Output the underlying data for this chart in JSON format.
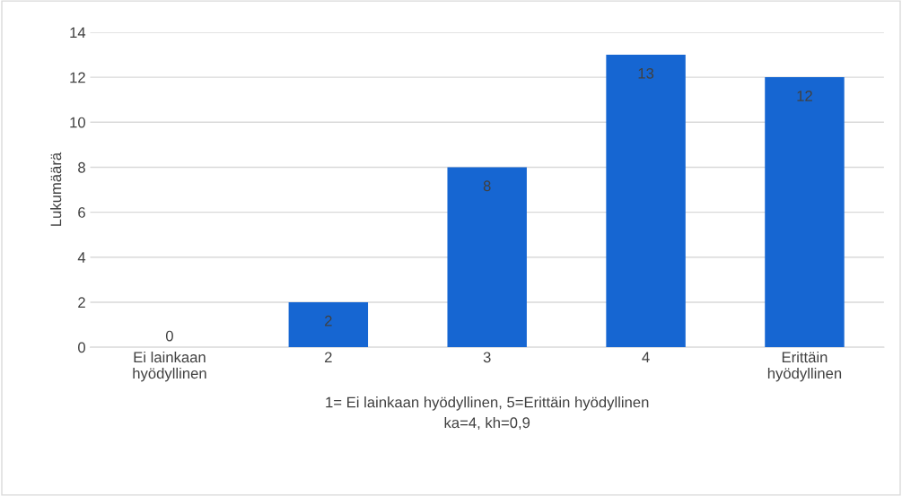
{
  "chart_data": {
    "type": "bar",
    "categories": [
      "Ei lainkaan\nhyödyllinen",
      "2",
      "3",
      "4",
      "Erittäin\nhyödyllinen"
    ],
    "values": [
      0,
      2,
      8,
      13,
      12
    ],
    "color": "#1666d2",
    "ylabel": "Lukumäärä",
    "xlabel": "1= Ei lainkaan hyödyllinen, 5=Erittäin hyödyllinen\nka=4, kh=0,9",
    "ylim": [
      0,
      14
    ],
    "yticks": [
      0,
      2,
      4,
      6,
      8,
      10,
      12,
      14
    ],
    "grid": "y",
    "data_labels": true,
    "legend": false
  }
}
